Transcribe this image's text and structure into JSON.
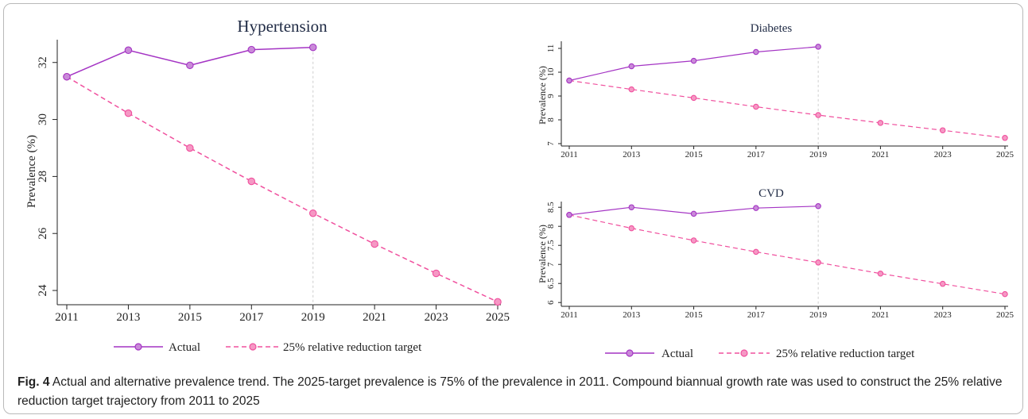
{
  "chart_data": [
    {
      "type": "line",
      "title": "Hypertension",
      "ylabel": "Prevalence (%)",
      "x": [
        2011,
        2013,
        2015,
        2017,
        2019,
        2021,
        2023,
        2025
      ],
      "xticks": [
        "2011",
        "2013",
        "2015",
        "2017",
        "2019",
        "2021",
        "2023",
        "2025"
      ],
      "yticks": [
        "24",
        "26",
        "28",
        "30",
        "32"
      ],
      "ylim": [
        23.5,
        32.8
      ],
      "series": [
        {
          "name": "Actual",
          "color": "#a434c4",
          "dash": false,
          "x": [
            2011,
            2013,
            2015,
            2017,
            2019
          ],
          "values": [
            31.5,
            32.43,
            31.9,
            32.45,
            32.53
          ]
        },
        {
          "name": "25% relative reduction target",
          "color": "#f0509e",
          "dash": true,
          "x": [
            2011,
            2013,
            2015,
            2017,
            2019,
            2021,
            2023,
            2025
          ],
          "values": [
            31.5,
            30.22,
            29.0,
            27.83,
            26.71,
            25.63,
            24.6,
            23.6
          ]
        }
      ]
    },
    {
      "type": "line",
      "title": "Diabetes",
      "ylabel": "Prevalence (%)",
      "x": [
        2011,
        2013,
        2015,
        2017,
        2019,
        2021,
        2023,
        2025
      ],
      "xticks": [
        "2011",
        "2013",
        "2015",
        "2017",
        "2019",
        "2021",
        "2023",
        "2025"
      ],
      "yticks": [
        "7",
        "8",
        "9",
        "10",
        "11"
      ],
      "ylim": [
        6.9,
        11.3
      ],
      "series": [
        {
          "name": "Actual",
          "color": "#a434c4",
          "dash": false,
          "x": [
            2011,
            2013,
            2015,
            2017,
            2019
          ],
          "values": [
            9.65,
            10.25,
            10.48,
            10.85,
            11.07
          ]
        },
        {
          "name": "25% relative reduction target",
          "color": "#f0509e",
          "dash": true,
          "x": [
            2011,
            2013,
            2015,
            2017,
            2019,
            2021,
            2023,
            2025
          ],
          "values": [
            9.65,
            9.28,
            8.92,
            8.55,
            8.2,
            7.87,
            7.56,
            7.24
          ]
        }
      ]
    },
    {
      "type": "line",
      "title": "CVD",
      "ylabel": "Prevalence (%)",
      "x": [
        2011,
        2013,
        2015,
        2017,
        2019,
        2021,
        2023,
        2025
      ],
      "xticks": [
        "2011",
        "2013",
        "2015",
        "2017",
        "2019",
        "2021",
        "2023",
        "2025"
      ],
      "yticks": [
        "6",
        "6.5",
        "7",
        "7.5",
        "8",
        "8.5"
      ],
      "ylim": [
        5.9,
        8.65
      ],
      "series": [
        {
          "name": "Actual",
          "color": "#a434c4",
          "dash": false,
          "x": [
            2011,
            2013,
            2015,
            2017,
            2019
          ],
          "values": [
            8.3,
            8.5,
            8.33,
            8.48,
            8.53
          ]
        },
        {
          "name": "25% relative reduction target",
          "color": "#f0509e",
          "dash": true,
          "x": [
            2011,
            2013,
            2015,
            2017,
            2019,
            2021,
            2023,
            2025
          ],
          "values": [
            8.3,
            7.95,
            7.63,
            7.33,
            7.05,
            6.76,
            6.49,
            6.22
          ]
        }
      ]
    }
  ],
  "legends": [
    {
      "actual": "Actual",
      "target": "25% relative reduction target"
    },
    {
      "actual": "Actual",
      "target": "25% relative reduction target"
    }
  ],
  "caption": {
    "label": "Fig. 4",
    "text": " Actual and alternative prevalence trend. The 2025-target prevalence is 75% of the prevalence in 2011. Compound biannual growth rate was used to construct the 25% relative reduction target trajectory from 2011 to 2025"
  },
  "colors": {
    "actual": "#a434c4",
    "target": "#f0509e",
    "marker_actual_fill": "#c98ad8",
    "marker_target_fill": "#f598c4"
  }
}
